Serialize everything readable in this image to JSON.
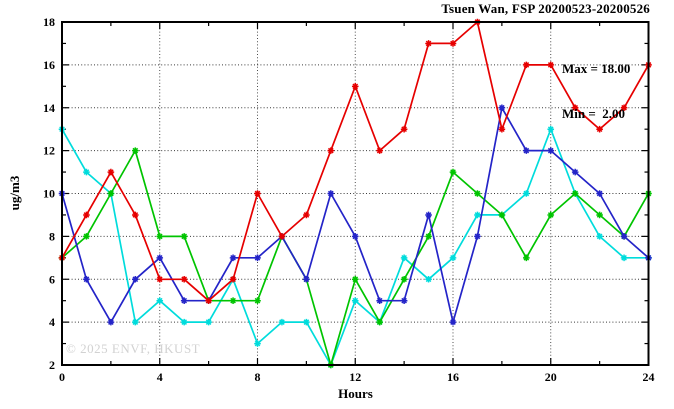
{
  "header": {
    "title": "Tsuen Wan, FSP 20200523-20200526"
  },
  "legend": {
    "max_label": "Max = 18.00",
    "min_label": "Min =  2.00"
  },
  "watermark": "© 2025 ENVF, HKUST",
  "axes": {
    "xlabel": "Hours",
    "ylabel": "ug/m3"
  },
  "chart_data": {
    "type": "line",
    "title": "Tsuen Wan, FSP 20200523-20200526",
    "xlabel": "Hours",
    "ylabel": "ug/m3",
    "xlim": [
      0,
      24
    ],
    "ylim": [
      2,
      18
    ],
    "xticks_major": [
      0,
      4,
      8,
      12,
      16,
      20,
      24
    ],
    "xtick_minor_step": 2,
    "yticks_major": [
      2,
      4,
      6,
      8,
      10,
      12,
      14,
      16,
      18
    ],
    "ytick_minor_step": 1,
    "grid": {
      "x_at": [
        4,
        8,
        12,
        16,
        20
      ],
      "y_at": [
        4,
        6,
        8,
        10,
        12,
        14,
        16
      ],
      "style": "dotted"
    },
    "legend_position": "top-right-inside",
    "annotations": [
      "Max = 18.00",
      "Min =  2.00"
    ],
    "x": [
      0,
      1,
      2,
      3,
      4,
      5,
      6,
      7,
      8,
      9,
      10,
      11,
      12,
      13,
      14,
      15,
      16,
      17,
      18,
      19,
      20,
      21,
      22,
      23,
      24
    ],
    "series": [
      {
        "name": "cyan",
        "color": "#00dcdc",
        "marker": "star",
        "values": [
          13,
          11,
          10,
          4,
          5,
          4,
          4,
          6,
          3,
          4,
          4,
          2,
          5,
          4,
          7,
          6,
          7,
          9,
          9,
          10,
          13,
          10,
          8,
          7,
          7
        ]
      },
      {
        "name": "green",
        "color": "#00c400",
        "marker": "star",
        "values": [
          7,
          8,
          10,
          12,
          8,
          8,
          5,
          5,
          5,
          8,
          6,
          2,
          6,
          4,
          6,
          8,
          11,
          10,
          9,
          7,
          9,
          10,
          9,
          8,
          10
        ]
      },
      {
        "name": "blue",
        "color": "#2424c8",
        "marker": "star",
        "values": [
          10,
          6,
          4,
          6,
          7,
          5,
          5,
          7,
          7,
          8,
          6,
          10,
          8,
          5,
          5,
          9,
          4,
          8,
          14,
          12,
          12,
          11,
          10,
          8,
          7
        ]
      },
      {
        "name": "red",
        "color": "#e60000",
        "marker": "star",
        "values": [
          7,
          9,
          11,
          9,
          6,
          6,
          5,
          6,
          10,
          8,
          9,
          12,
          15,
          12,
          13,
          17,
          17,
          18,
          13,
          16,
          16,
          14,
          13,
          14,
          16
        ]
      }
    ],
    "stats": {
      "max": "18.00",
      "min": "2.00"
    }
  }
}
